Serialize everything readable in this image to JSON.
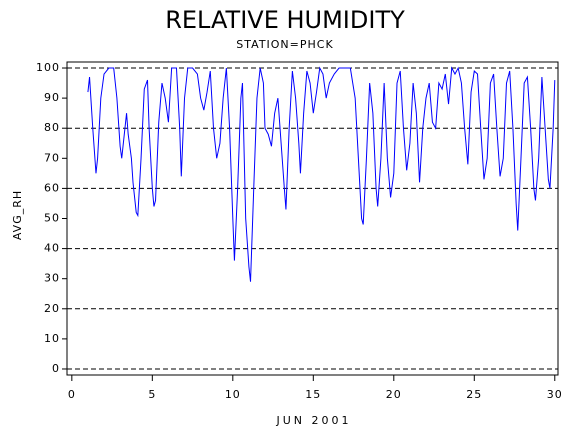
{
  "chart_data": {
    "type": "line",
    "title": "RELATIVE HUMIDITY",
    "subtitle": "STATION=PHCK",
    "x_label": "JUN 2001",
    "y_label": "AVG_RH",
    "color": "#0000ff",
    "xlim": [
      -0.3,
      30.2
    ],
    "xticks": [
      0,
      5,
      10,
      15,
      20,
      25,
      30
    ],
    "ylim": [
      -2,
      102
    ],
    "yticks": [
      0,
      10,
      20,
      30,
      40,
      50,
      60,
      70,
      80,
      90,
      100
    ],
    "reflines": [
      0,
      20,
      40,
      60,
      80,
      100
    ],
    "x": [
      1.0,
      1.1,
      1.3,
      1.5,
      1.6,
      1.8,
      2.0,
      2.3,
      2.6,
      2.8,
      3.0,
      3.1,
      3.3,
      3.4,
      3.5,
      3.7,
      3.8,
      4.0,
      4.1,
      4.3,
      4.5,
      4.7,
      4.8,
      5.0,
      5.1,
      5.2,
      5.4,
      5.6,
      5.8,
      6.0,
      6.2,
      6.5,
      6.7,
      6.8,
      7.0,
      7.2,
      7.5,
      7.8,
      8.0,
      8.2,
      8.4,
      8.6,
      8.8,
      9.0,
      9.2,
      9.4,
      9.6,
      9.8,
      10.0,
      10.1,
      10.3,
      10.5,
      10.6,
      10.8,
      11.0,
      11.1,
      11.3,
      11.5,
      11.7,
      11.9,
      12.0,
      12.2,
      12.4,
      12.6,
      12.8,
      13.0,
      13.2,
      13.3,
      13.5,
      13.7,
      13.9,
      14.1,
      14.2,
      14.4,
      14.6,
      14.8,
      15.0,
      15.2,
      15.4,
      15.6,
      15.8,
      16.0,
      16.3,
      16.6,
      17.0,
      17.3,
      17.6,
      17.8,
      18.0,
      18.1,
      18.3,
      18.5,
      18.7,
      18.9,
      19.0,
      19.2,
      19.4,
      19.6,
      19.8,
      20.0,
      20.2,
      20.4,
      20.6,
      20.8,
      21.0,
      21.2,
      21.4,
      21.6,
      21.8,
      22.0,
      22.2,
      22.4,
      22.6,
      22.8,
      23.0,
      23.2,
      23.4,
      23.6,
      23.8,
      24.0,
      24.2,
      24.4,
      24.6,
      24.8,
      25.0,
      25.2,
      25.4,
      25.6,
      25.8,
      26.0,
      26.2,
      26.4,
      26.6,
      26.8,
      27.0,
      27.2,
      27.4,
      27.6,
      27.7,
      27.9,
      28.1,
      28.3,
      28.5,
      28.7,
      28.8,
      29.0,
      29.2,
      29.4,
      29.6,
      29.7,
      29.9,
      30.0
    ],
    "values": [
      92,
      97,
      80,
      65,
      70,
      90,
      98,
      100,
      100,
      90,
      74,
      70,
      80,
      85,
      78,
      70,
      62,
      52,
      51,
      70,
      93,
      96,
      80,
      60,
      54,
      56,
      82,
      95,
      90,
      82,
      100,
      100,
      80,
      64,
      90,
      100,
      100,
      98,
      90,
      86,
      92,
      99,
      80,
      70,
      75,
      90,
      100,
      80,
      50,
      36,
      60,
      90,
      95,
      50,
      34,
      29,
      60,
      90,
      100,
      95,
      80,
      78,
      74,
      85,
      90,
      75,
      60,
      53,
      80,
      99,
      90,
      75,
      65,
      85,
      99,
      95,
      85,
      92,
      100,
      98,
      90,
      95,
      98,
      100,
      100,
      100,
      90,
      70,
      50,
      48,
      70,
      95,
      85,
      60,
      54,
      70,
      95,
      70,
      57,
      65,
      95,
      99,
      80,
      66,
      75,
      95,
      85,
      62,
      80,
      90,
      95,
      82,
      80,
      95,
      93,
      98,
      88,
      100,
      98,
      100,
      95,
      80,
      68,
      92,
      99,
      98,
      80,
      63,
      70,
      95,
      98,
      80,
      64,
      70,
      95,
      99,
      80,
      55,
      46,
      70,
      95,
      97,
      80,
      60,
      56,
      70,
      97,
      80,
      63,
      60,
      80,
      96
    ]
  }
}
